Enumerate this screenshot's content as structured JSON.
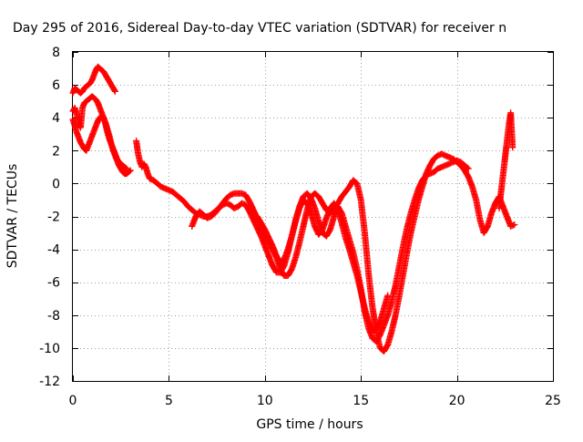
{
  "chart_data": {
    "type": "scatter",
    "title": "Day 295 of 2016, Sidereal Day-to-day VTEC variation (SDTVAR) for receiver n",
    "xlabel": "GPS time / hours",
    "ylabel": "SDTVAR / TECUs",
    "xlim": [
      0,
      25
    ],
    "ylim": [
      -12,
      8
    ],
    "x_ticks": [
      0,
      5,
      10,
      15,
      20,
      25
    ],
    "y_ticks": [
      -12,
      -10,
      -8,
      -6,
      -4,
      -2,
      0,
      2,
      4,
      6,
      8
    ],
    "grid": true,
    "legend": "none",
    "marker": "+",
    "color": "#ff0000",
    "series": [
      {
        "x": [
          0.0,
          0.1,
          0.2,
          0.3,
          0.4,
          0.5,
          0.6,
          0.7,
          0.8,
          0.9,
          1.0,
          1.1,
          1.2,
          1.3,
          1.4,
          1.5,
          1.6,
          1.7,
          1.8,
          1.9,
          2.0,
          2.1,
          2.2
        ],
        "y": [
          5.5,
          5.8,
          5.7,
          5.6,
          5.5,
          5.6,
          5.8,
          5.9,
          6.0,
          6.1,
          6.3,
          6.6,
          6.9,
          7.1,
          7.0,
          6.9,
          6.8,
          6.6,
          6.4,
          6.2,
          6.0,
          5.8,
          5.6
        ]
      },
      {
        "x": [
          0.0,
          0.1,
          0.2,
          0.3,
          0.4,
          0.5,
          0.6,
          0.7,
          0.8,
          0.9,
          1.0,
          1.1,
          1.2,
          1.3,
          1.4,
          1.5,
          1.6,
          1.7,
          1.8,
          1.9,
          2.0,
          2.1,
          2.2,
          2.3,
          2.4,
          2.5,
          2.6,
          2.7,
          2.8
        ],
        "y": [
          4.4,
          4.6,
          4.2,
          3.7,
          3.4,
          4.6,
          4.9,
          5.0,
          5.1,
          5.2,
          5.3,
          5.2,
          5.1,
          4.9,
          4.6,
          4.3,
          4.0,
          3.6,
          3.1,
          2.7,
          2.4,
          2.1,
          1.8,
          1.5,
          1.3,
          1.2,
          1.1,
          1.0,
          0.9
        ]
      },
      {
        "x": [
          0.0,
          0.1,
          0.2,
          0.3,
          0.4,
          0.5,
          0.6,
          0.7,
          0.8,
          0.9,
          1.0,
          1.1,
          1.2,
          1.3,
          1.4,
          1.5,
          1.6,
          1.7,
          1.8,
          1.9,
          2.0,
          2.1,
          2.2,
          2.3,
          2.4,
          2.5,
          2.6,
          2.7,
          2.8,
          2.9,
          3.0
        ],
        "y": [
          3.9,
          3.5,
          3.1,
          2.8,
          2.5,
          2.3,
          2.1,
          2.0,
          2.3,
          2.6,
          2.9,
          3.2,
          3.5,
          3.8,
          4.0,
          4.1,
          4.0,
          3.7,
          3.3,
          2.9,
          2.4,
          2.0,
          1.7,
          1.4,
          1.1,
          0.9,
          0.7,
          0.6,
          0.6,
          0.7,
          0.8
        ]
      },
      {
        "x": [
          3.3,
          3.4,
          3.5,
          3.6,
          3.7,
          3.8,
          3.9,
          4.0,
          4.2,
          4.4,
          4.6,
          4.8,
          5.0,
          5.2,
          5.4,
          5.6,
          5.8,
          6.0,
          6.2,
          6.4,
          6.6,
          6.8,
          7.0,
          7.2,
          7.4,
          7.6,
          7.8,
          8.0,
          8.2,
          8.4,
          8.6,
          8.8,
          9.0,
          9.2,
          9.4,
          9.6,
          9.8,
          10.0,
          10.2,
          10.4,
          10.6,
          10.8,
          11.0,
          11.2,
          11.4,
          11.6,
          11.8,
          12.0,
          12.2,
          12.4,
          12.6,
          12.8,
          13.0,
          13.2,
          13.4,
          13.6,
          13.8,
          14.0,
          14.2,
          14.4,
          14.6,
          14.8,
          15.0,
          15.2,
          15.4,
          15.6,
          15.8,
          16.0,
          16.2,
          16.4,
          16.6,
          16.8,
          17.0,
          17.2,
          17.4,
          17.6,
          17.8,
          18.0,
          18.2,
          18.4,
          18.6,
          18.8,
          19.0,
          19.2,
          19.4,
          19.6,
          19.8,
          20.0,
          20.2,
          20.4,
          20.6,
          20.8,
          21.0,
          21.2,
          21.4,
          21.6,
          21.8,
          22.0,
          22.2,
          22.4,
          22.6,
          22.8,
          23.0
        ],
        "y": [
          2.6,
          1.8,
          1.3,
          1.0,
          1.2,
          1.0,
          0.6,
          0.3,
          0.2,
          0.0,
          -0.2,
          -0.3,
          -0.4,
          -0.5,
          -0.7,
          -0.9,
          -1.1,
          -1.4,
          -1.6,
          -1.8,
          -1.9,
          -2.0,
          -2.0,
          -1.9,
          -1.7,
          -1.5,
          -1.2,
          -0.9,
          -0.7,
          -0.6,
          -0.6,
          -0.6,
          -0.7,
          -1.1,
          -1.6,
          -2.1,
          -2.7,
          -3.2,
          -3.6,
          -4.0,
          -4.5,
          -5.2,
          -5.6,
          -5.6,
          -5.2,
          -4.5,
          -3.6,
          -2.6,
          -1.6,
          -0.8,
          -0.6,
          -0.8,
          -1.2,
          -1.6,
          -1.8,
          -1.6,
          -1.2,
          -0.8,
          -0.5,
          -0.2,
          0.2,
          0.0,
          -1.0,
          -3.0,
          -5.5,
          -7.5,
          -9.0,
          -10.0,
          -10.2,
          -9.8,
          -9.0,
          -8.0,
          -6.8,
          -5.5,
          -4.2,
          -3.0,
          -2.0,
          -1.0,
          -0.2,
          0.6,
          1.1,
          1.5,
          1.7,
          1.8,
          1.7,
          1.6,
          1.5,
          1.3,
          1.1,
          0.8,
          0.4,
          -0.2,
          -1.0,
          -2.2,
          -3.0,
          -2.6,
          -1.8,
          -1.2,
          -0.8,
          -1.4,
          -2.0,
          -2.6,
          -2.5
        ]
      },
      {
        "x": [
          6.2,
          6.4,
          6.6,
          6.8,
          7.0,
          7.2,
          7.4,
          7.6,
          7.8,
          8.0,
          8.2,
          8.4,
          8.6,
          8.8,
          9.0,
          9.2,
          9.4,
          9.6,
          9.8,
          10.0,
          10.2,
          10.4,
          10.6,
          10.8,
          11.0,
          11.2,
          11.4,
          11.6,
          11.8,
          12.0,
          12.2,
          12.4,
          12.6,
          12.8,
          13.0,
          13.2,
          13.4,
          13.6,
          13.8,
          14.0,
          14.2,
          14.4,
          14.6,
          14.8,
          15.0,
          15.2,
          15.4,
          15.6,
          15.8,
          16.0,
          16.2,
          16.4,
          16.6,
          16.8,
          17.0,
          17.2,
          17.4,
          17.6,
          17.8,
          18.0,
          18.2,
          18.4,
          18.6,
          18.8,
          19.0,
          19.2,
          19.4,
          19.6,
          19.8,
          20.0,
          20.2,
          20.4,
          20.6
        ],
        "y": [
          -2.6,
          -2.0,
          -1.7,
          -1.9,
          -2.1,
          -2.0,
          -1.8,
          -1.5,
          -1.3,
          -1.2,
          -1.3,
          -1.5,
          -1.4,
          -1.2,
          -1.3,
          -1.7,
          -2.2,
          -2.7,
          -3.2,
          -3.8,
          -4.4,
          -5.0,
          -5.4,
          -5.4,
          -5.0,
          -4.2,
          -3.2,
          -2.2,
          -1.4,
          -0.8,
          -0.6,
          -0.9,
          -1.5,
          -2.3,
          -3.0,
          -3.2,
          -2.8,
          -2.0,
          -1.4,
          -1.8,
          -2.6,
          -3.4,
          -4.2,
          -5.2,
          -6.4,
          -7.8,
          -8.8,
          -9.4,
          -9.6,
          -9.2,
          -8.6,
          -8.0,
          -7.2,
          -6.2,
          -5.0,
          -3.8,
          -2.7,
          -1.8,
          -1.0,
          -0.3,
          0.2,
          0.5,
          0.6,
          0.7,
          0.9,
          1.0,
          1.1,
          1.2,
          1.3,
          1.4,
          1.3,
          1.1,
          0.9
        ]
      },
      {
        "x": [
          9.6,
          9.8,
          10.0,
          10.2,
          10.4,
          10.6,
          10.8,
          11.0,
          11.2,
          11.4,
          11.6,
          11.8,
          12.0,
          12.2,
          12.4,
          12.6,
          12.8,
          13.0,
          13.2,
          13.4,
          13.6,
          13.8,
          14.0,
          14.2,
          14.4,
          14.6,
          14.8,
          15.0,
          15.2,
          15.4,
          15.6,
          15.8,
          16.0,
          16.2,
          16.4
        ],
        "y": [
          -2.0,
          -2.4,
          -2.8,
          -3.3,
          -3.8,
          -4.4,
          -4.8,
          -4.6,
          -4.0,
          -3.2,
          -2.3,
          -1.5,
          -1.0,
          -1.2,
          -1.8,
          -2.6,
          -3.1,
          -2.8,
          -2.1,
          -1.5,
          -1.2,
          -1.6,
          -2.4,
          -3.3,
          -4.0,
          -4.8,
          -5.6,
          -6.6,
          -7.6,
          -8.4,
          -8.9,
          -8.9,
          -8.4,
          -7.6,
          -6.8
        ]
      },
      {
        "x": [
          22.2,
          22.3,
          22.4,
          22.5,
          22.6,
          22.7,
          22.8,
          22.9
        ],
        "y": [
          -1.5,
          -0.5,
          0.5,
          1.5,
          2.5,
          3.5,
          4.3,
          2.2
        ]
      }
    ]
  }
}
